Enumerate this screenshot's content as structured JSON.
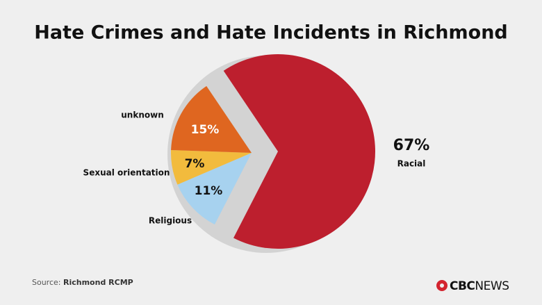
{
  "chart_data": {
    "type": "pie",
    "title": "Hate Crimes and Hate Incidents in Richmond",
    "categories": [
      "Racial",
      "Religious",
      "Sexual orientation",
      "unknown"
    ],
    "values": [
      67,
      11,
      7,
      15
    ],
    "value_labels": [
      "67%",
      "11%",
      "7%",
      "15%"
    ],
    "colors": [
      "#bd1f2e",
      "#a7d2ef",
      "#f2bb3d",
      "#df6620"
    ],
    "source_label": "Source:",
    "source": "Richmond RCMP",
    "logo": [
      "CBC",
      "NEWS"
    ]
  }
}
